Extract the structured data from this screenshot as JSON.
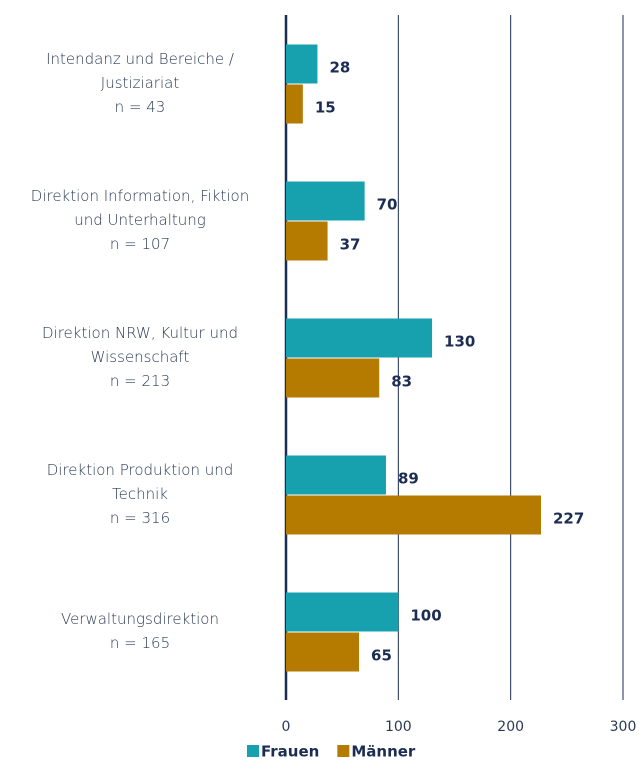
{
  "chart_data": {
    "type": "barh",
    "categories": [
      [
        "Intendanz und Bereiche /",
        "Justiziariat",
        "n = 43"
      ],
      [
        "Direktion Information, Fiktion",
        "und Unterhaltung",
        "n = 107"
      ],
      [
        "Direktion NRW, Kultur und",
        "Wissenschaft",
        "n = 213"
      ],
      [
        "Direktion Produktion und",
        "Technik",
        "n = 316"
      ],
      [
        "Verwaltungsdirektion",
        "n = 165"
      ]
    ],
    "series": [
      {
        "name": "Frauen",
        "color": "#17a0ae",
        "values": [
          28,
          70,
          130,
          89,
          100
        ]
      },
      {
        "name": "Männer",
        "color": "#b57a00",
        "values": [
          15,
          37,
          83,
          227,
          65
        ]
      }
    ],
    "xlim": [
      0,
      300
    ],
    "xticks": [
      0,
      100,
      200,
      300
    ],
    "grid": true,
    "legend": "bottom"
  }
}
